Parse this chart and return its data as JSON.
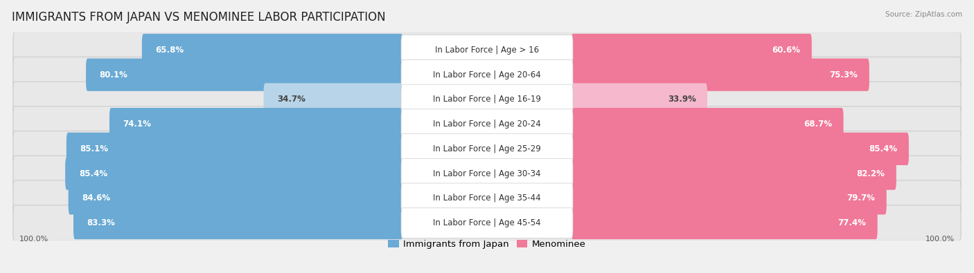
{
  "title": "IMMIGRANTS FROM JAPAN VS MENOMINEE LABOR PARTICIPATION",
  "source": "Source: ZipAtlas.com",
  "categories": [
    "In Labor Force | Age > 16",
    "In Labor Force | Age 20-64",
    "In Labor Force | Age 16-19",
    "In Labor Force | Age 20-24",
    "In Labor Force | Age 25-29",
    "In Labor Force | Age 30-34",
    "In Labor Force | Age 35-44",
    "In Labor Force | Age 45-54"
  ],
  "japan_values": [
    65.8,
    80.1,
    34.7,
    74.1,
    85.1,
    85.4,
    84.6,
    83.3
  ],
  "menominee_values": [
    60.6,
    75.3,
    33.9,
    68.7,
    85.4,
    82.2,
    79.7,
    77.4
  ],
  "japan_color": "#6aaad4",
  "japan_color_light": "#b8d4e8",
  "menominee_color": "#f07898",
  "menominee_color_light": "#f5b8cc",
  "bar_height": 0.62,
  "bg_color": "#f0f0f0",
  "row_bg_color": "#e8e8e8",
  "title_fontsize": 12,
  "label_fontsize": 8.5,
  "value_fontsize": 8.5,
  "legend_fontsize": 9.5,
  "figsize": [
    14.06,
    3.95
  ],
  "max_val": 100,
  "label_zone": 18
}
